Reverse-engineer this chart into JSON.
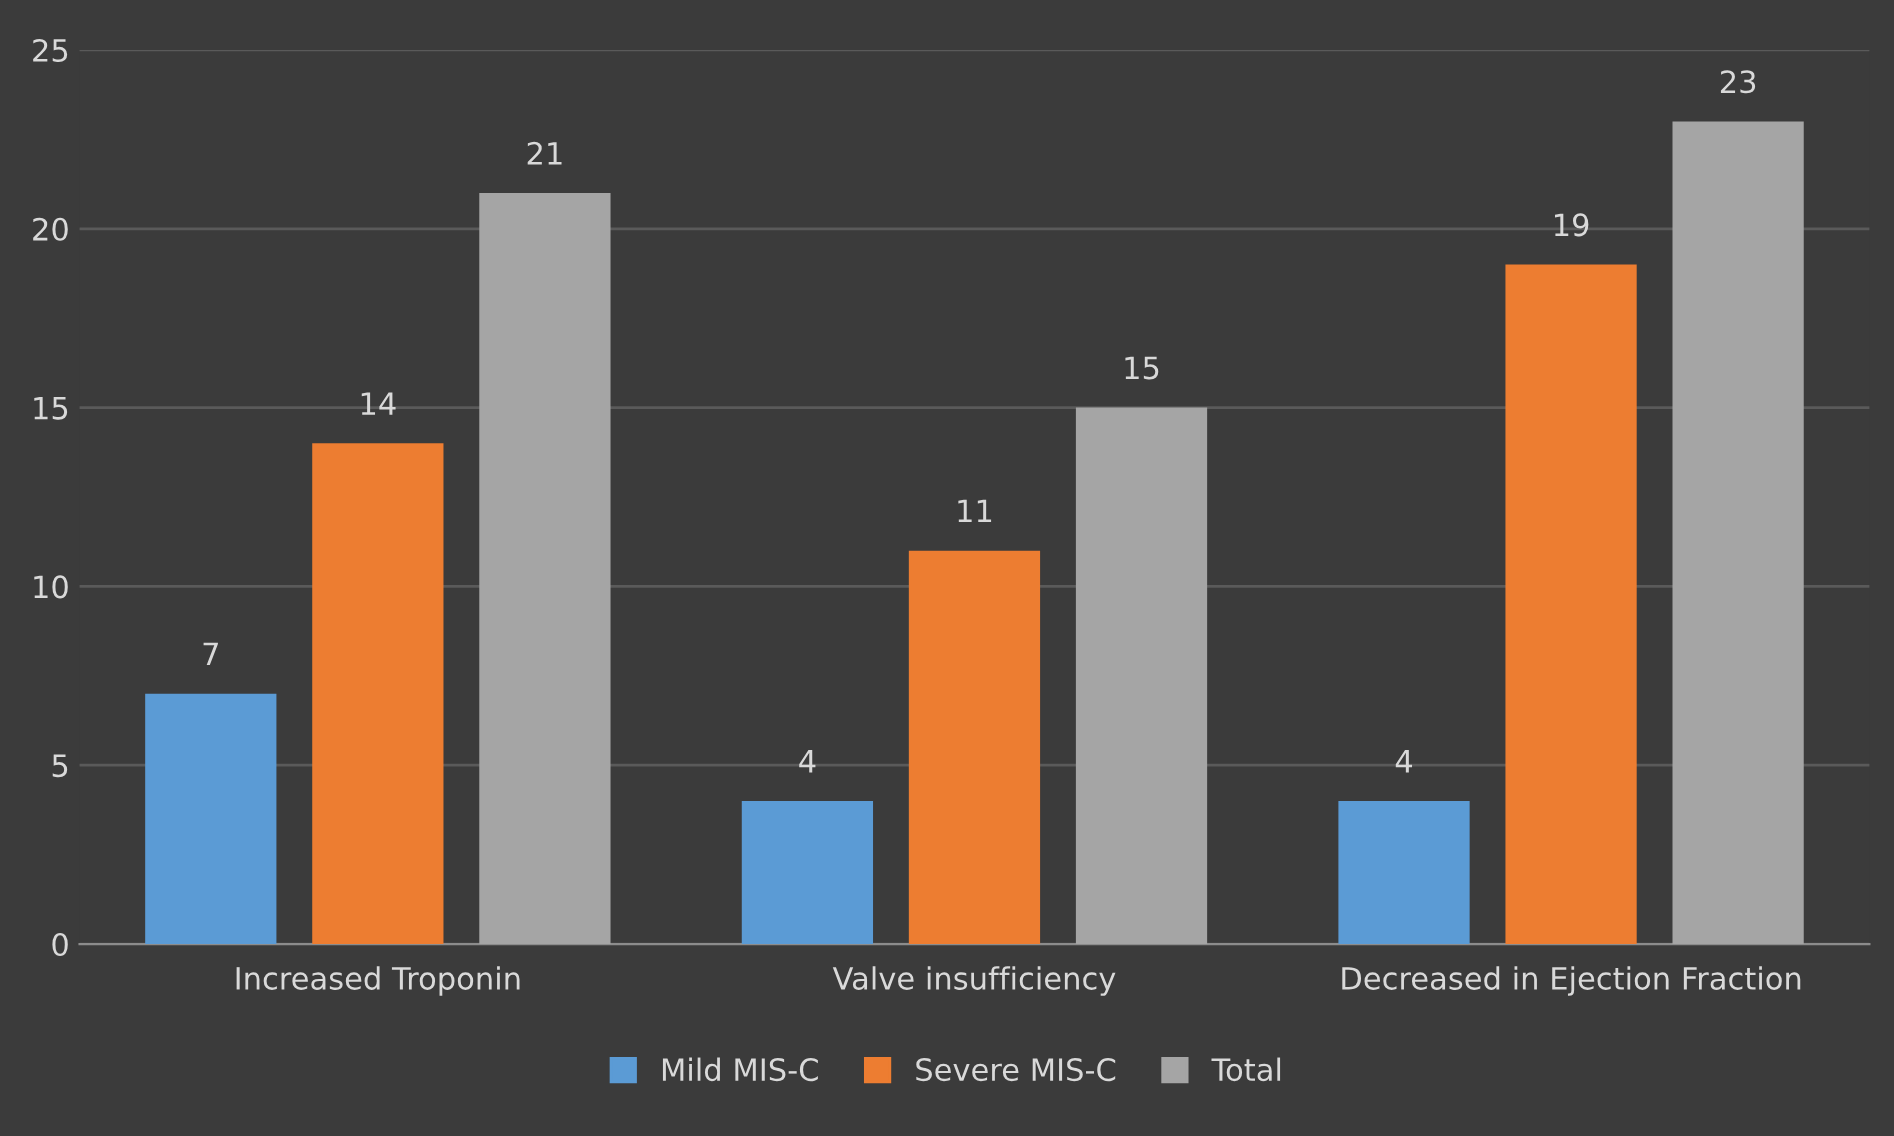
{
  "chart_data": {
    "type": "bar",
    "categories": [
      "Increased Troponin",
      "Valve insufficiency",
      "Decreased in Ejection Fraction"
    ],
    "series": [
      {
        "name": "Mild MIS-C",
        "color": "#5b9bd5",
        "values": [
          7,
          4,
          4
        ]
      },
      {
        "name": "Severe MIS-C",
        "color": "#ed7d31",
        "values": [
          14,
          11,
          19
        ]
      },
      {
        "name": "Total",
        "color": "#a5a5a5",
        "values": [
          21,
          15,
          23
        ]
      }
    ],
    "ylim": [
      0,
      25
    ],
    "yticks": [
      0,
      5,
      10,
      15,
      20,
      25
    ],
    "grid": "y",
    "legend": "bottom",
    "data_labels": true
  }
}
